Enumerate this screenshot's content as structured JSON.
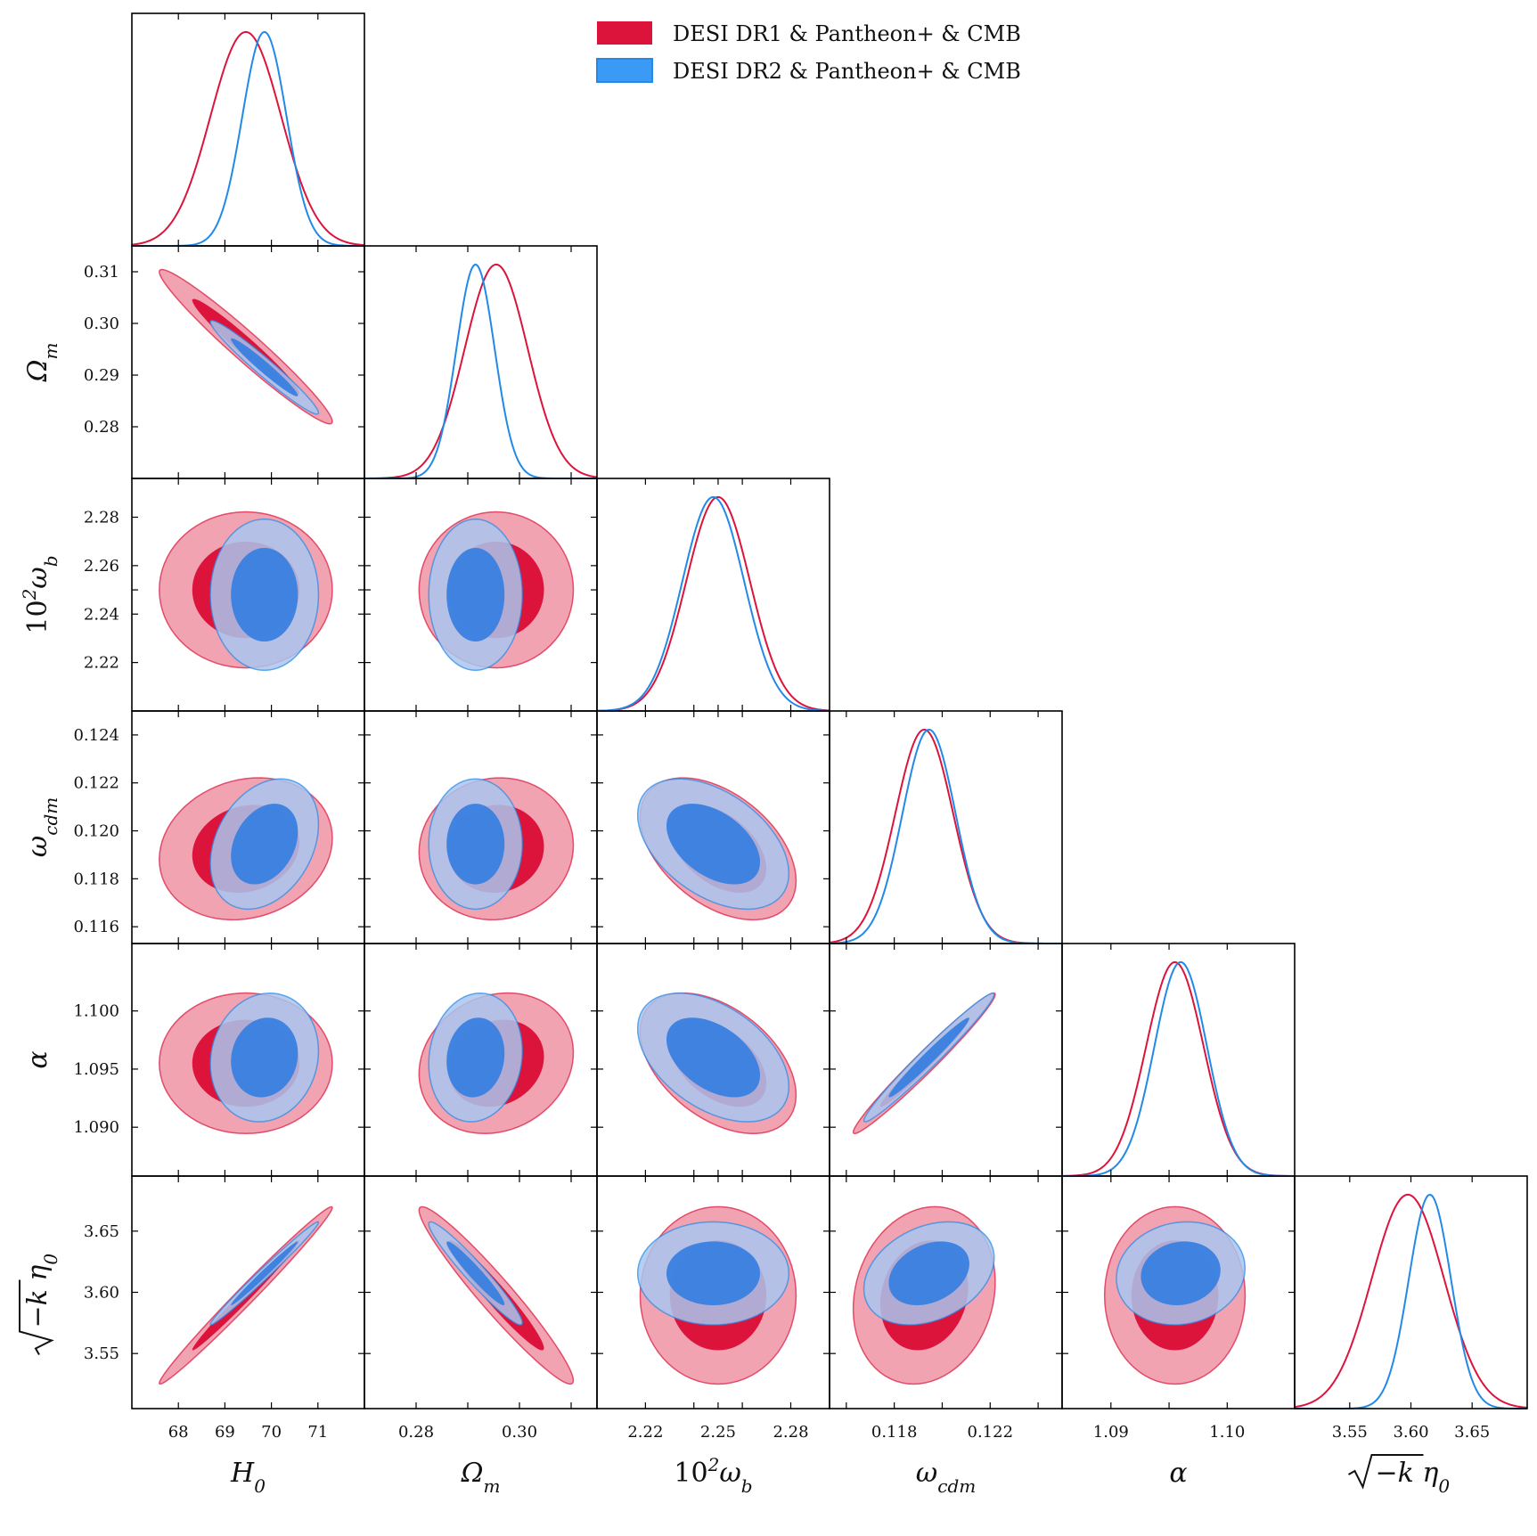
{
  "chart_data": {
    "type": "corner",
    "parameters": [
      {
        "key": "H0",
        "label": "H₀",
        "range": [
          67.0,
          72.0
        ],
        "ticks": [
          68,
          69,
          70,
          71
        ],
        "tick_labels": [
          "68",
          "69",
          "70",
          "71"
        ]
      },
      {
        "key": "Omega_m",
        "label": "Ωₘ",
        "range": [
          0.27,
          0.315
        ],
        "ticks": [
          0.28,
          0.29,
          0.3,
          0.31
        ],
        "tick_labels": [
          "0.28",
          "0.29",
          "0.30",
          "0.31"
        ]
      },
      {
        "key": "omega_b",
        "label": "10²ω_b",
        "range": [
          2.2,
          2.296
        ],
        "ticks": [
          2.22,
          2.24,
          2.25,
          2.26,
          2.28
        ],
        "tick_labels": [
          "2.22",
          "2.24",
          "2.25",
          "2.26",
          "2.28"
        ]
      },
      {
        "key": "omega_cdm",
        "label": "ω_cdm",
        "range": [
          0.1153,
          0.125
        ],
        "ticks": [
          0.116,
          0.118,
          0.12,
          0.122,
          0.124
        ],
        "tick_labels": [
          "0.116",
          "0.118",
          "0.120",
          "0.122",
          "0.124"
        ]
      },
      {
        "key": "alpha",
        "label": "α",
        "range": [
          1.0858,
          1.1058
        ],
        "ticks": [
          1.09,
          1.095,
          1.1
        ],
        "tick_labels": [
          "1.090",
          "1.095",
          "1.100"
        ]
      },
      {
        "key": "sqrtk_eta0",
        "label": "√−k η₀",
        "range": [
          3.505,
          3.695
        ],
        "ticks": [
          3.55,
          3.6,
          3.65
        ],
        "tick_labels": [
          "3.55",
          "3.60",
          "3.65"
        ]
      }
    ],
    "row_tick_labels": [
      null,
      [
        "0.28",
        "0.29",
        "0.30",
        "0.31"
      ],
      [
        "2.22",
        "2.24",
        "2.26",
        "2.28"
      ],
      [
        "0.116",
        "0.118",
        "0.120",
        "0.122",
        "0.124"
      ],
      [
        "1.090",
        "1.095",
        "1.100"
      ],
      [
        "3.55",
        "3.60",
        "3.65"
      ]
    ],
    "col_tick_labels": [
      [
        "68",
        "69",
        "70",
        "71"
      ],
      [
        "0.28",
        "0.30"
      ],
      [
        "2.22",
        "2.25",
        "2.28"
      ],
      [
        "0.118",
        "0.122"
      ],
      [
        "1.09",
        "1.10"
      ],
      [
        "3.55",
        "3.60",
        "3.65"
      ]
    ],
    "row_tick_values": [
      null,
      [
        0.28,
        0.29,
        0.3,
        0.31
      ],
      [
        2.22,
        2.24,
        2.26,
        2.28
      ],
      [
        0.116,
        0.118,
        0.12,
        0.122,
        0.124
      ],
      [
        1.09,
        1.095,
        1.1
      ],
      [
        3.55,
        3.6,
        3.65
      ]
    ],
    "col_tick_values": [
      [
        68,
        69,
        70,
        71
      ],
      [
        0.28,
        0.3
      ],
      [
        2.22,
        2.25,
        2.28
      ],
      [
        0.118,
        0.122
      ],
      [
        1.09,
        1.1
      ],
      [
        3.55,
        3.6,
        3.65
      ]
    ],
    "axis_labels": {
      "H0": "H",
      "H0_sub": "0",
      "Omega_m": "Ω",
      "Omega_m_sub": "m",
      "omega_b": "10",
      "omega_b_sup": "2",
      "omega_b_sym": "ω",
      "omega_b_sub": "b",
      "omega_cdm": "ω",
      "omega_cdm_sub": "cdm",
      "alpha": "α",
      "sqrtk": "−k η",
      "sqrtk_sub": "0"
    },
    "series": [
      {
        "name": "DESI DR1 & Pantheon+ & CMB",
        "color": "#dc143c",
        "fill_inner": "#dc143c",
        "fill_outer": "#f1a3b1",
        "mean": [
          69.45,
          0.2955,
          2.25,
          0.11925,
          1.0955,
          3.5975
        ],
        "sigma": [
          0.76,
          0.0061,
          0.01315,
          0.00121,
          0.00247,
          0.0296
        ],
        "corr": [
          [
            1,
            -0.97,
            0.0,
            0.15,
            0.0,
            0.99
          ],
          [
            -0.97,
            1,
            0.0,
            0.05,
            0.15,
            -0.96
          ],
          [
            0.0,
            0.0,
            1,
            -0.45,
            -0.45,
            0.0
          ],
          [
            0.15,
            0.05,
            -0.45,
            1,
            0.98,
            0.15
          ],
          [
            0.0,
            0.15,
            -0.45,
            0.98,
            1,
            0.0
          ],
          [
            0.99,
            -0.96,
            0.0,
            0.15,
            0.0,
            1
          ]
        ]
      },
      {
        "name": "DESI DR2 & Pantheon+ & CMB",
        "color": "#2389e8",
        "fill_inner": "#3a7fe0",
        "fill_outer": "#a9c5ef",
        "mean": [
          69.85,
          0.2915,
          2.248,
          0.11945,
          1.096,
          3.6155
        ],
        "sigma": [
          0.475,
          0.0037,
          0.01275,
          0.00111,
          0.00226,
          0.0172
        ],
        "corr": [
          [
            1,
            -0.97,
            0.0,
            0.3,
            0.1,
            0.99
          ],
          [
            -0.97,
            1,
            0.0,
            0.0,
            0.1,
            -0.96
          ],
          [
            0.0,
            0.0,
            1,
            -0.45,
            -0.45,
            0.0
          ],
          [
            0.3,
            0.0,
            -0.45,
            1,
            0.98,
            0.3
          ],
          [
            0.1,
            0.1,
            -0.45,
            0.98,
            1,
            0.1
          ],
          [
            0.99,
            -0.96,
            0.0,
            0.3,
            0.1,
            1
          ]
        ]
      }
    ],
    "legend": {
      "position": "top-right",
      "entries": [
        "DESI DR1 & Pantheon+ & CMB",
        "DESI DR2 & Pantheon+ & CMB"
      ]
    },
    "grid": false
  }
}
